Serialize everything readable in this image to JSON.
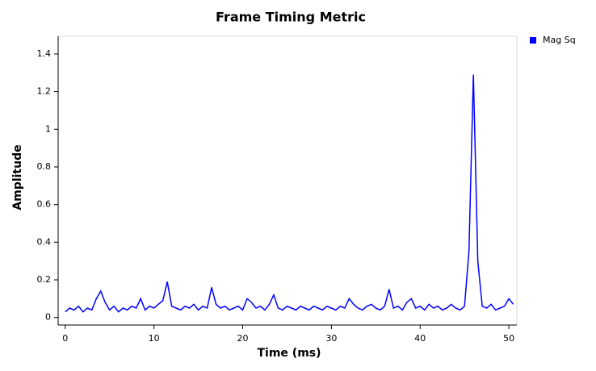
{
  "chart_data": {
    "type": "line",
    "title": "Frame Timing Metric",
    "x_label": "Time (ms)",
    "y_label": "Amplitude",
    "x": [
      0,
      0.5,
      1,
      1.5,
      2,
      2.5,
      3,
      3.5,
      4,
      4.5,
      5,
      5.5,
      6,
      6.5,
      7,
      7.5,
      8,
      8.5,
      9,
      9.5,
      10,
      10.5,
      11,
      11.5,
      12,
      12.5,
      13,
      13.5,
      14,
      14.5,
      15,
      15.5,
      16,
      16.5,
      17,
      17.5,
      18,
      18.5,
      19,
      19.5,
      20,
      20.5,
      21,
      21.5,
      22,
      22.5,
      23,
      23.5,
      24,
      24.5,
      25,
      25.5,
      26,
      26.5,
      27,
      27.5,
      28,
      28.5,
      29,
      29.5,
      30,
      30.5,
      31,
      31.5,
      32,
      32.5,
      33,
      33.5,
      34,
      34.5,
      35,
      35.5,
      36,
      36.5,
      37,
      37.5,
      38,
      38.5,
      39,
      39.5,
      40,
      40.5,
      41,
      41.5,
      42,
      42.5,
      43,
      43.5,
      44,
      44.5,
      45,
      45.5,
      46,
      46.5,
      47,
      47.5,
      48,
      48.5,
      49,
      49.5,
      50,
      50.5
    ],
    "series": [
      {
        "name": "Mag Sq",
        "color": "#0000ff",
        "values": [
          0.03,
          0.05,
          0.04,
          0.06,
          0.03,
          0.05,
          0.04,
          0.1,
          0.14,
          0.08,
          0.04,
          0.06,
          0.03,
          0.05,
          0.04,
          0.06,
          0.05,
          0.1,
          0.04,
          0.06,
          0.05,
          0.07,
          0.09,
          0.19,
          0.06,
          0.05,
          0.04,
          0.06,
          0.05,
          0.07,
          0.04,
          0.06,
          0.05,
          0.16,
          0.07,
          0.05,
          0.06,
          0.04,
          0.05,
          0.06,
          0.04,
          0.1,
          0.08,
          0.05,
          0.06,
          0.04,
          0.07,
          0.12,
          0.05,
          0.04,
          0.06,
          0.05,
          0.04,
          0.06,
          0.05,
          0.04,
          0.06,
          0.05,
          0.04,
          0.06,
          0.05,
          0.04,
          0.06,
          0.05,
          0.1,
          0.07,
          0.05,
          0.04,
          0.06,
          0.07,
          0.05,
          0.04,
          0.06,
          0.15,
          0.05,
          0.06,
          0.04,
          0.08,
          0.1,
          0.05,
          0.06,
          0.04,
          0.07,
          0.05,
          0.06,
          0.04,
          0.05,
          0.07,
          0.05,
          0.04,
          0.06,
          0.35,
          1.29,
          0.3,
          0.06,
          0.05,
          0.07,
          0.04,
          0.05,
          0.06,
          0.1,
          0.07
        ]
      }
    ],
    "xlim": [
      -0.8,
      50.9
    ],
    "xticks": [
      0,
      10,
      20,
      30,
      40,
      50
    ],
    "ylim": [
      -0.04,
      1.494
    ],
    "yticks": [
      0,
      0.2,
      0.4,
      0.6,
      0.8,
      1,
      1.2,
      1.4
    ],
    "legend": "top-right"
  }
}
